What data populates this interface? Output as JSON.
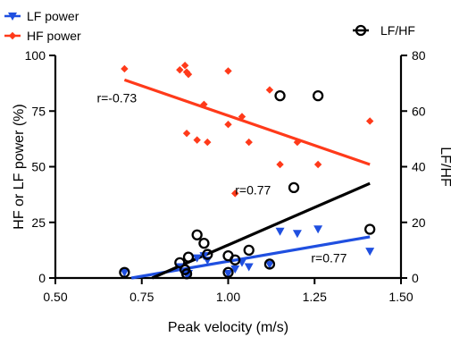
{
  "chart_data": {
    "type": "scatter",
    "xlabel": "Peak velocity (m/s)",
    "ylabel_left": "HF or LF power (%)",
    "ylabel_right": "LF/HF",
    "xlim": [
      0.5,
      1.5
    ],
    "ylim_left": [
      0,
      100
    ],
    "ylim_right": [
      0,
      80
    ],
    "x_ticks": [
      "0.50",
      "0.75",
      "1.00",
      "1.25",
      "1.50"
    ],
    "y_left_ticks": [
      "0",
      "25",
      "50",
      "75",
      "100"
    ],
    "y_right_ticks": [
      "0",
      "20",
      "40",
      "60",
      "80"
    ],
    "legend": [
      {
        "key": "lf",
        "label": "LF power",
        "color": "#1f4fe0",
        "marker": "triangle-down"
      },
      {
        "key": "hf",
        "label": "HF power",
        "color": "#ff3a1a",
        "marker": "diamond"
      },
      {
        "key": "ratio",
        "label": "LF/HF",
        "color": "#000000",
        "marker": "open-circle"
      }
    ],
    "series": [
      {
        "name": "HF power",
        "key": "hf",
        "axis": "left",
        "color": "#ff3a1a",
        "marker": "diamond",
        "points": [
          [
            0.7,
            94
          ],
          [
            0.86,
            93.5
          ],
          [
            0.875,
            95.5
          ],
          [
            0.88,
            92.5
          ],
          [
            0.885,
            91.5
          ],
          [
            0.93,
            78
          ],
          [
            0.91,
            62
          ],
          [
            0.88,
            65
          ],
          [
            0.94,
            61
          ],
          [
            1.0,
            93
          ],
          [
            1.0,
            69
          ],
          [
            1.04,
            72.5
          ],
          [
            1.06,
            61
          ],
          [
            1.12,
            84.5
          ],
          [
            1.02,
            38
          ],
          [
            1.15,
            51
          ],
          [
            1.2,
            61
          ],
          [
            1.26,
            51
          ],
          [
            1.41,
            70.5
          ]
        ],
        "fit": {
          "x": [
            0.7,
            1.41
          ],
          "y": [
            89,
            51
          ]
        },
        "annotation": {
          "text": "r=-0.73",
          "x": 0.62,
          "y": 79
        }
      },
      {
        "name": "LF power",
        "key": "lf",
        "axis": "left",
        "color": "#1f4fe0",
        "marker": "triangle-down",
        "points": [
          [
            0.7,
            2.5
          ],
          [
            0.86,
            5
          ],
          [
            0.875,
            3
          ],
          [
            0.88,
            1.5
          ],
          [
            0.885,
            2
          ],
          [
            0.91,
            9
          ],
          [
            0.93,
            10
          ],
          [
            0.94,
            8
          ],
          [
            1.0,
            2
          ],
          [
            1.02,
            4
          ],
          [
            1.04,
            7
          ],
          [
            1.06,
            5
          ],
          [
            1.12,
            6
          ],
          [
            1.15,
            21
          ],
          [
            1.2,
            20
          ],
          [
            1.26,
            22
          ],
          [
            1.41,
            12
          ]
        ],
        "fit": {
          "x": [
            0.72,
            1.41
          ],
          "y": [
            0,
            18.5
          ]
        },
        "annotation": {
          "text": "r=0.77",
          "x": 1.24,
          "y": 7
        }
      },
      {
        "name": "LF/HF",
        "key": "ratio",
        "axis": "right",
        "color": "#000000",
        "marker": "open-circle",
        "points": [
          [
            0.7,
            2
          ],
          [
            0.86,
            5.5
          ],
          [
            0.875,
            3
          ],
          [
            0.88,
            1.5
          ],
          [
            0.885,
            7.5
          ],
          [
            0.91,
            15.5
          ],
          [
            0.93,
            12.5
          ],
          [
            0.94,
            8.5
          ],
          [
            1.0,
            8
          ],
          [
            1.0,
            2
          ],
          [
            1.02,
            6.5
          ],
          [
            1.06,
            10
          ],
          [
            1.12,
            5
          ],
          [
            1.15,
            65.5
          ],
          [
            1.19,
            32.5
          ],
          [
            1.26,
            65.5
          ],
          [
            1.41,
            17.5
          ]
        ],
        "fit": {
          "x": [
            0.78,
            1.41
          ],
          "y": [
            0,
            34
          ]
        },
        "annotation": {
          "text": "r=0.77",
          "x": 1.02,
          "y": 30
        }
      }
    ]
  }
}
